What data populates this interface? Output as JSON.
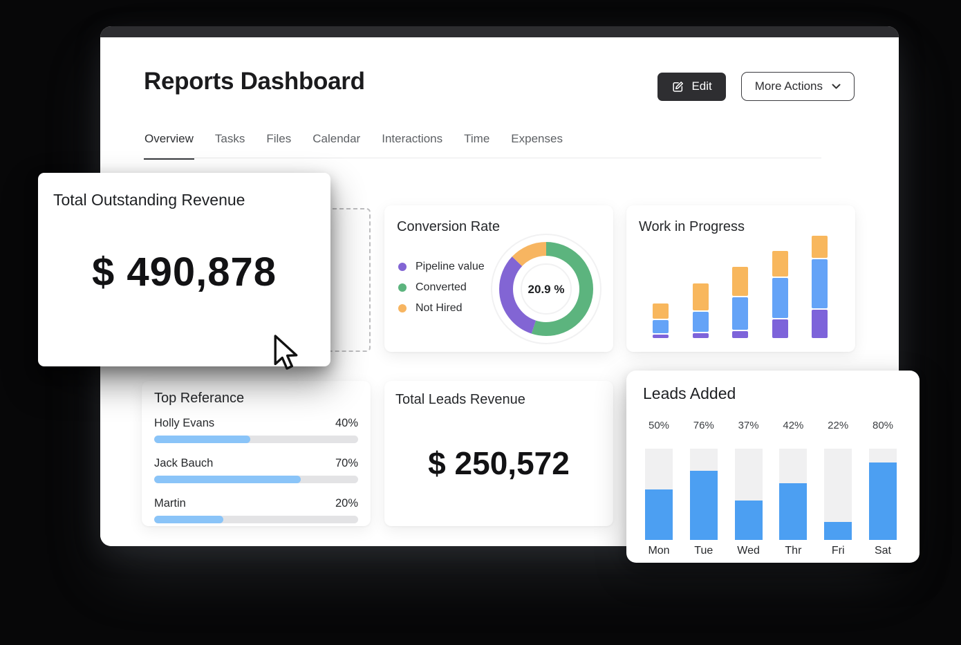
{
  "header": {
    "title": "Reports Dashboard",
    "edit_label": "Edit",
    "more_actions_label": "More Actions"
  },
  "tabs": [
    {
      "label": "Overview",
      "active": true
    },
    {
      "label": "Tasks",
      "active": false
    },
    {
      "label": "Files",
      "active": false
    },
    {
      "label": "Calendar",
      "active": false
    },
    {
      "label": "Interactions",
      "active": false
    },
    {
      "label": "Time",
      "active": false
    },
    {
      "label": "Expenses",
      "active": false
    }
  ],
  "cards": {
    "total_outstanding": {
      "title": "Total Outstanding Revenue",
      "amount": "$ 490,878"
    },
    "conversion_rate": {
      "title": "Conversion Rate",
      "center_label": "20.9 %",
      "legend": [
        {
          "label": "Pipeline value",
          "color": "#8265d4"
        },
        {
          "label": "Converted",
          "color": "#5cb47e"
        },
        {
          "label": "Not Hired",
          "color": "#f7b561"
        }
      ]
    },
    "work_in_progress": {
      "title": "Work in Progress"
    },
    "top_referance": {
      "title": "Top Referance",
      "rows": [
        {
          "name": "Holly Evans",
          "pct_label": "40%",
          "fill_pct": 47
        },
        {
          "name": "Jack Bauch",
          "pct_label": "70%",
          "fill_pct": 72
        },
        {
          "name": "Martin",
          "pct_label": "20%",
          "fill_pct": 34
        }
      ]
    },
    "total_leads": {
      "title": "Total Leads Revenue",
      "amount": "$ 250,572"
    },
    "leads_added": {
      "title": "Leads Added",
      "bars": [
        {
          "day": "Mon",
          "pct_label": "50%",
          "fill_pct": 55
        },
        {
          "day": "Tue",
          "pct_label": "76%",
          "fill_pct": 76
        },
        {
          "day": "Wed",
          "pct_label": "37%",
          "fill_pct": 43
        },
        {
          "day": "Thr",
          "pct_label": "42%",
          "fill_pct": 62
        },
        {
          "day": "Fri",
          "pct_label": "22%",
          "fill_pct": 20
        },
        {
          "day": "Sat",
          "pct_label": "80%",
          "fill_pct": 85
        }
      ]
    }
  },
  "chart_data": [
    {
      "id": "conversion-rate-donut",
      "type": "pie",
      "title": "Conversion Rate",
      "center_label": "20.9 %",
      "legend_position": "left",
      "slices": [
        {
          "label": "Converted",
          "pct": 55,
          "color": "#5cb47e"
        },
        {
          "label": "Pipeline value",
          "pct": 32,
          "color": "#8265d4"
        },
        {
          "label": "Not Hired",
          "pct": 13,
          "color": "#f7b561"
        }
      ]
    },
    {
      "id": "work-in-progress-stacked",
      "type": "bar",
      "stacked": true,
      "title": "Work in Progress",
      "categories": [
        "",
        "",
        "",
        "",
        ""
      ],
      "series": [
        {
          "name": "bottom-purple",
          "color": "#7d63da",
          "values": [
            5,
            7,
            10,
            27,
            41
          ]
        },
        {
          "name": "middle-blue",
          "color": "#64a3f7",
          "values": [
            19,
            29,
            47,
            58,
            71
          ]
        },
        {
          "name": "top-orange",
          "color": "#f8b75d",
          "values": [
            22,
            39,
            42,
            37,
            32
          ]
        }
      ],
      "note": "no axes or value labels shown; values are pixel-height estimates"
    },
    {
      "id": "leads-added-bars",
      "type": "bar",
      "title": "Leads Added",
      "categories": [
        "Mon",
        "Tue",
        "Wed",
        "Thr",
        "Fri",
        "Sat"
      ],
      "values": [
        50,
        76,
        37,
        42,
        22,
        80
      ],
      "value_labels": [
        "50%",
        "76%",
        "37%",
        "42%",
        "22%",
        "80%"
      ],
      "visual_fill_pct": [
        55,
        76,
        43,
        62,
        20,
        85
      ],
      "ylim": [
        0,
        100
      ],
      "bar_color": "#4c9ff2",
      "track_color": "#f0f0f1"
    },
    {
      "id": "top-referance-progress",
      "type": "table",
      "title": "Top Referance",
      "rows": [
        [
          "Holly Evans",
          "40%"
        ],
        [
          "Jack Bauch",
          "70%"
        ],
        [
          "Martin",
          "20%"
        ]
      ]
    }
  ],
  "colors": {
    "page_background": "#070708",
    "titlebar": "#2d2d30",
    "accent_blue": "#4c9ff2",
    "progress_blue": "#8ac4f8",
    "purple": "#7d63da",
    "green": "#5cb47e",
    "orange": "#f7b561",
    "edit_button_bg": "#2e2e31"
  }
}
